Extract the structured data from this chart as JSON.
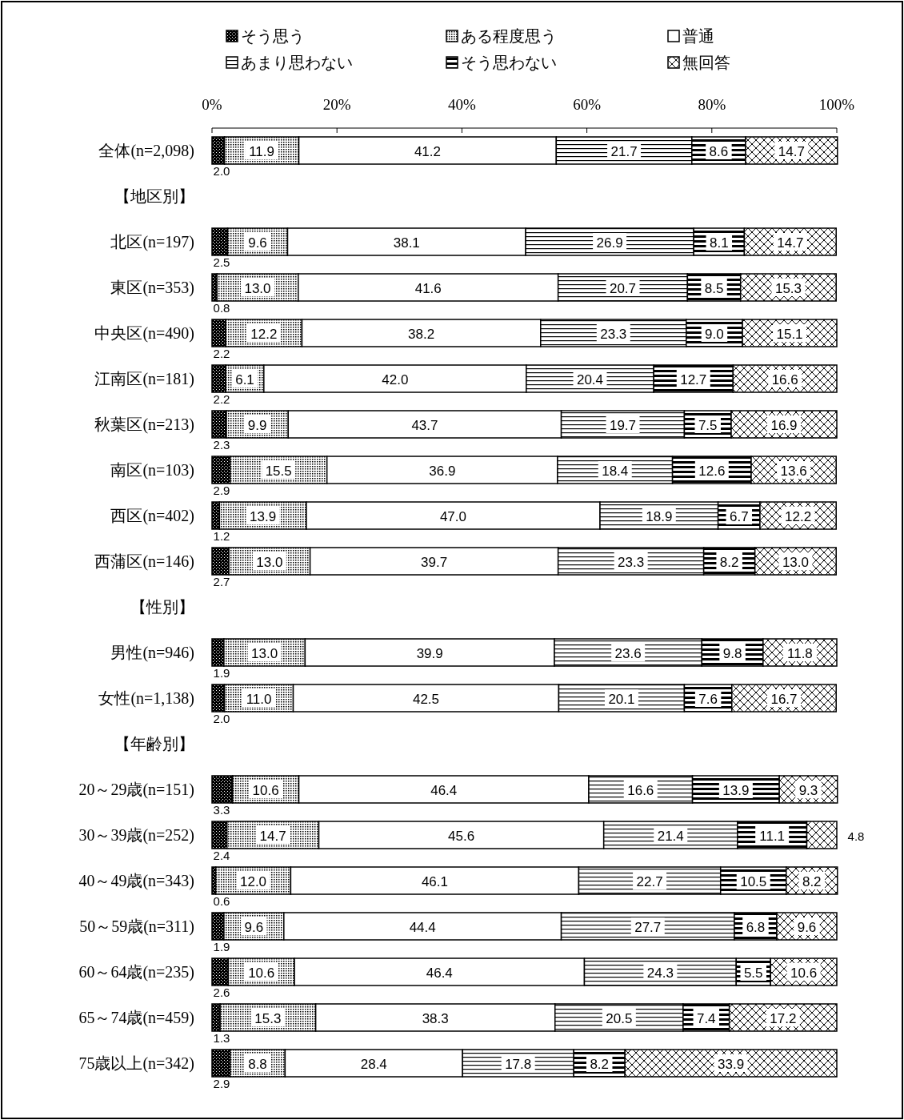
{
  "chart_data": {
    "type": "bar",
    "orientation": "horizontal",
    "stacked": true,
    "legend": "top",
    "categories": [
      "全体(n=2,098)",
      "【地区別】",
      "北区(n=197)",
      "東区(n=353)",
      "中央区(n=490)",
      "江南区(n=181)",
      "秋葉区(n=213)",
      "南区(n=103)",
      "西区(n=402)",
      "西蒲区(n=146)",
      "【性別】",
      "男性(n=946)",
      "女性(n=1,138)",
      "【年齢別】",
      "20～29歳(n=151)",
      "30～39歳(n=252)",
      "40～49歳(n=343)",
      "50～59歳(n=311)",
      "60～64歳(n=235)",
      "65～74歳(n=459)",
      "75歳以上(n=342)"
    ],
    "xlim": [
      0,
      100
    ],
    "xticks": [
      {
        "value": 0,
        "label": "0%"
      },
      {
        "value": 20,
        "label": "20%"
      },
      {
        "value": 40,
        "label": "40%"
      },
      {
        "value": 60,
        "label": "60%"
      },
      {
        "value": 80,
        "label": "80%"
      },
      {
        "value": 100,
        "label": "100%"
      }
    ],
    "series": [
      {
        "name": "そう思う",
        "color": "#000000",
        "values": [
          2.0,
          null,
          2.5,
          0.8,
          2.2,
          2.2,
          2.3,
          2.9,
          1.2,
          2.7,
          null,
          1.9,
          2.0,
          null,
          3.3,
          2.4,
          0.6,
          1.9,
          2.6,
          1.3,
          2.9
        ],
        "value_labels": [
          "2.0",
          null,
          "2.5",
          "0.8",
          "2.2",
          "2.2",
          "2.3",
          "2.9",
          "1.2",
          "2.7",
          null,
          "1.9",
          "2.0",
          null,
          "3.3",
          "2.4",
          "0.6",
          "1.9",
          "2.6",
          "1.3",
          "2.9"
        ]
      },
      {
        "name": "ある程度思う",
        "color": "#000000",
        "values": [
          11.9,
          null,
          9.6,
          13.0,
          12.2,
          6.1,
          9.9,
          15.5,
          13.9,
          13.0,
          null,
          13.0,
          11.0,
          null,
          10.6,
          14.7,
          12.0,
          9.6,
          10.6,
          15.3,
          8.8
        ],
        "value_labels": [
          "11.9",
          null,
          "9.6",
          "13.0",
          "12.2",
          "6.1",
          "9.9",
          "15.5",
          "13.9",
          "13.0",
          null,
          "13.0",
          "11.0",
          null,
          "10.6",
          "14.7",
          "12.0",
          "9.6",
          "10.6",
          "15.3",
          "8.8"
        ]
      },
      {
        "name": "普通",
        "color": "#ffffff",
        "values": [
          41.2,
          null,
          38.1,
          41.6,
          38.2,
          42.0,
          43.7,
          36.9,
          47.0,
          39.7,
          null,
          39.9,
          42.5,
          null,
          46.4,
          45.6,
          46.1,
          44.4,
          46.4,
          38.3,
          28.4
        ],
        "value_labels": [
          "41.2",
          null,
          "38.1",
          "41.6",
          "38.2",
          "42.0",
          "43.7",
          "36.9",
          "47.0",
          "39.7",
          null,
          "39.9",
          "42.5",
          null,
          "46.4",
          "45.6",
          "46.1",
          "44.4",
          "46.4",
          "38.3",
          "28.4"
        ]
      },
      {
        "name": "あまり思わない",
        "color": "#000000",
        "values": [
          21.7,
          null,
          26.9,
          20.7,
          23.3,
          20.4,
          19.7,
          18.4,
          18.9,
          23.3,
          null,
          23.6,
          20.1,
          null,
          16.6,
          21.4,
          22.7,
          27.7,
          24.3,
          20.5,
          17.8
        ],
        "value_labels": [
          "21.7",
          null,
          "26.9",
          "20.7",
          "23.3",
          "20.4",
          "19.7",
          "18.4",
          "18.9",
          "23.3",
          null,
          "23.6",
          "20.1",
          null,
          "16.6",
          "21.4",
          "22.7",
          "27.7",
          "24.3",
          "20.5",
          "17.8"
        ]
      },
      {
        "name": "そう思わない",
        "color": "#000000",
        "values": [
          8.6,
          null,
          8.1,
          8.5,
          9.0,
          12.7,
          7.5,
          12.6,
          6.7,
          8.2,
          null,
          9.8,
          7.6,
          null,
          13.9,
          11.1,
          10.5,
          6.8,
          5.5,
          7.4,
          8.2
        ],
        "value_labels": [
          "8.6",
          null,
          "8.1",
          "8.5",
          "9.0",
          "12.7",
          "7.5",
          "12.6",
          "6.7",
          "8.2",
          null,
          "9.8",
          "7.6",
          null,
          "13.9",
          "11.1",
          "10.5",
          "6.8",
          "5.5",
          "7.4",
          "8.2"
        ]
      },
      {
        "name": "無回答",
        "color": "#000000",
        "values": [
          14.7,
          null,
          14.7,
          15.3,
          15.1,
          16.6,
          16.9,
          13.6,
          12.2,
          13.0,
          null,
          11.8,
          16.7,
          null,
          9.3,
          4.8,
          8.2,
          9.6,
          10.6,
          17.2,
          33.9
        ],
        "value_labels": [
          "14.7",
          null,
          "14.7",
          "15.3",
          "15.1",
          "16.6",
          "16.9",
          "13.6",
          "12.2",
          "13.0",
          null,
          "11.8",
          "16.7",
          null,
          "9.3",
          "4.8",
          "8.2",
          "9.6",
          "10.6",
          "17.2",
          "33.9"
        ]
      }
    ]
  }
}
